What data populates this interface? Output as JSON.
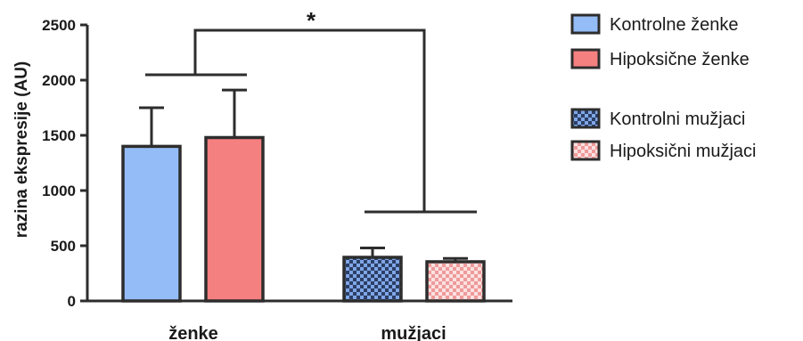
{
  "chart_data": {
    "type": "bar",
    "ylabel": "razina ekspresije (AU)",
    "ylim": [
      0,
      2500
    ],
    "yticks": [
      0,
      500,
      1000,
      1500,
      2000,
      2500
    ],
    "groups": [
      "ženke",
      "mužjaci"
    ],
    "series": [
      {
        "name": "Kontrolne ženke",
        "group": "ženke",
        "value": 1400,
        "error": 350,
        "color": "#94bdf7",
        "pattern": "solid"
      },
      {
        "name": "Hipoksične ženke",
        "group": "ženke",
        "value": 1480,
        "error": 430,
        "color": "#f58080",
        "pattern": "solid"
      },
      {
        "name": "Kontrolni mužjaci",
        "group": "mužjaci",
        "value": 395,
        "error": 85,
        "color": "#7fa6e6",
        "pattern": "checker"
      },
      {
        "name": "Hipoksični mužjaci",
        "group": "mužjaci",
        "value": 355,
        "error": 30,
        "color": "#f3a3a3",
        "pattern": "checker"
      }
    ],
    "significance": {
      "label": "*",
      "between": [
        "ženke",
        "mužjaci"
      ]
    },
    "legend_position": "right"
  }
}
